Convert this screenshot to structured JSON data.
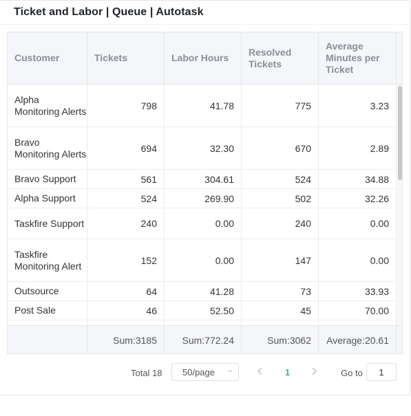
{
  "widget": {
    "title": "Ticket and Labor | Queue | Autotask"
  },
  "table": {
    "columns": [
      "Customer",
      "Tickets",
      "Labor Hours",
      "Resolved Tickets",
      "Average Minutes per Ticket"
    ],
    "rows": [
      [
        "Alpha Monitoring Alerts",
        "798",
        "41.78",
        "775",
        "3.23"
      ],
      [
        "Bravo Monitoring Alerts",
        "694",
        "32.30",
        "670",
        "2.89"
      ],
      [
        "Bravo Support",
        "561",
        "304.61",
        "524",
        "34.88"
      ],
      [
        "Alpha Support",
        "524",
        "269.90",
        "502",
        "32.26"
      ],
      [
        "Taskfire Support",
        "240",
        "0.00",
        "240",
        "0.00"
      ],
      [
        "Taskfire Monitoring Alert",
        "152",
        "0.00",
        "147",
        "0.00"
      ],
      [
        "Outsource",
        "64",
        "41.28",
        "73",
        "33.93"
      ],
      [
        "Post Sale",
        "46",
        "52.50",
        "45",
        "70.00"
      ]
    ],
    "footer": [
      "",
      "Sum:3185",
      "Sum:772.24",
      "Sum:3062",
      "Average:20.61"
    ]
  },
  "pagination": {
    "total": "Total 18",
    "page_size": "50/page",
    "prev_icon": "chevron-left-icon",
    "next_icon": "chevron-right-icon",
    "current_page": "1",
    "goto_label": "Go to",
    "goto_value": "1"
  },
  "colors": {
    "accent": "#2eb7a6",
    "header_bg": "#f4f6f9"
  }
}
